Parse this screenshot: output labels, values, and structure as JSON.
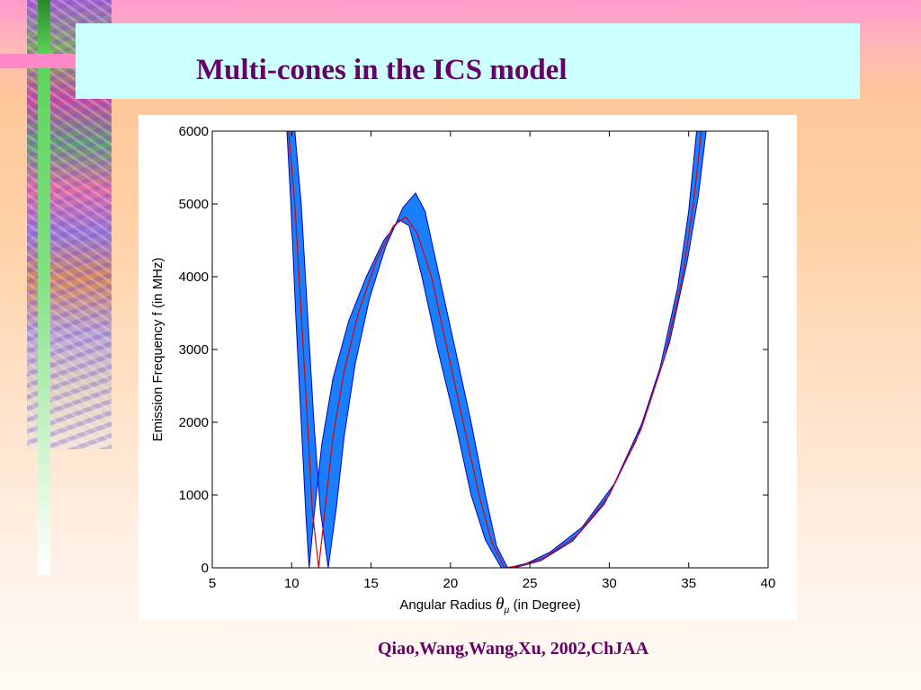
{
  "slide": {
    "title": "Multi-cones in the ICS model",
    "citation": "Qiao,Wang,Wang,Xu, 2002,ChJAA"
  },
  "colors": {
    "title": "#660066",
    "title_box": "#ccffff",
    "band": "#1a7fff",
    "band_edge": "#0000cc",
    "center_line": "#dd0000"
  },
  "chart_data": {
    "type": "line",
    "title": "",
    "xlabel": "Angular Radius",
    "xlabel_symbol": "θ",
    "xlabel_subscript": "μ",
    "xlabel_suffix": "(in Degree)",
    "ylabel": "Emission Frequency  f  (in MHz)",
    "xlim": [
      5,
      40
    ],
    "ylim": [
      0,
      6000
    ],
    "xticks": [
      5,
      10,
      15,
      20,
      25,
      30,
      35,
      40
    ],
    "yticks": [
      0,
      1000,
      2000,
      3000,
      4000,
      5000,
      6000
    ],
    "grid": false,
    "series": [
      {
        "role": "center",
        "points": [
          [
            9.8,
            6000
          ],
          [
            10.2,
            5000
          ],
          [
            10.6,
            3500
          ],
          [
            11.0,
            2000
          ],
          [
            11.3,
            800
          ],
          [
            11.7,
            0
          ],
          [
            12.1,
            800
          ],
          [
            12.6,
            1800
          ],
          [
            13.3,
            2700
          ],
          [
            14.2,
            3500
          ],
          [
            15.3,
            4200
          ],
          [
            16.4,
            4700
          ],
          [
            17.2,
            4820
          ],
          [
            17.9,
            4600
          ],
          [
            18.8,
            4000
          ],
          [
            19.8,
            3000
          ],
          [
            20.8,
            2000
          ],
          [
            21.8,
            1000
          ],
          [
            22.6,
            350
          ],
          [
            23.4,
            0
          ],
          [
            24.5,
            30
          ],
          [
            26.0,
            150
          ],
          [
            28.0,
            450
          ],
          [
            30.0,
            1000
          ],
          [
            32.0,
            1900
          ],
          [
            33.5,
            2900
          ],
          [
            34.6,
            4000
          ],
          [
            35.3,
            5000
          ],
          [
            35.8,
            6000
          ]
        ]
      },
      {
        "role": "band-upper",
        "points": [
          [
            10.2,
            6000
          ],
          [
            10.6,
            5000
          ],
          [
            11.0,
            3500
          ],
          [
            11.4,
            2000
          ],
          [
            11.8,
            800
          ],
          [
            12.3,
            0
          ],
          [
            12.8,
            800
          ],
          [
            13.3,
            1800
          ],
          [
            14.0,
            2800
          ],
          [
            14.9,
            3700
          ],
          [
            15.9,
            4400
          ],
          [
            17.0,
            4950
          ],
          [
            17.8,
            5150
          ],
          [
            18.4,
            4900
          ],
          [
            19.3,
            4000
          ],
          [
            20.3,
            3000
          ],
          [
            21.3,
            2000
          ],
          [
            22.2,
            1000
          ],
          [
            22.9,
            300
          ],
          [
            23.6,
            0
          ],
          [
            24.8,
            60
          ],
          [
            26.3,
            220
          ],
          [
            28.3,
            560
          ],
          [
            30.3,
            1150
          ],
          [
            32.3,
            2100
          ],
          [
            33.8,
            3100
          ],
          [
            34.9,
            4200
          ],
          [
            35.6,
            5100
          ],
          [
            36.1,
            6000
          ]
        ]
      },
      {
        "role": "band-lower",
        "points": [
          [
            9.7,
            6000
          ],
          [
            9.95,
            5000
          ],
          [
            10.25,
            3500
          ],
          [
            10.6,
            2000
          ],
          [
            10.9,
            700
          ],
          [
            11.1,
            0
          ],
          [
            11.4,
            700
          ],
          [
            11.9,
            1700
          ],
          [
            12.6,
            2600
          ],
          [
            13.6,
            3400
          ],
          [
            14.7,
            4000
          ],
          [
            15.8,
            4500
          ],
          [
            16.8,
            4780
          ],
          [
            17.4,
            4700
          ],
          [
            18.2,
            4000
          ],
          [
            19.2,
            3000
          ],
          [
            20.3,
            2000
          ],
          [
            21.3,
            1000
          ],
          [
            22.2,
            380
          ],
          [
            23.2,
            0
          ],
          [
            24.2,
            10
          ],
          [
            25.7,
            100
          ],
          [
            27.7,
            370
          ],
          [
            29.7,
            880
          ],
          [
            31.7,
            1750
          ],
          [
            33.2,
            2750
          ],
          [
            34.3,
            3850
          ],
          [
            35.0,
            4900
          ],
          [
            35.5,
            6000
          ]
        ]
      }
    ]
  }
}
